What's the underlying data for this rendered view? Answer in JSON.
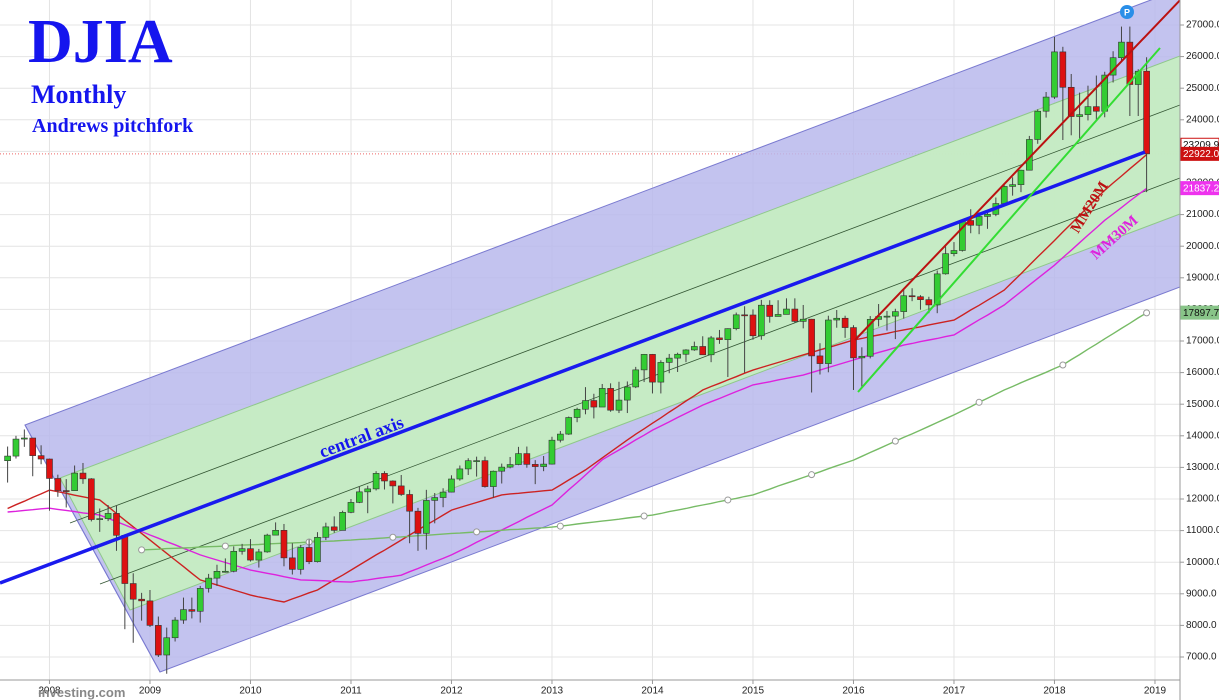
{
  "chart_data": {
    "type": "candlestick",
    "title": "DJIA",
    "subtitles": [
      "Monthly",
      "Andrews pitchfork"
    ],
    "annotations": [
      "central axis"
    ],
    "watermark": "investing.com",
    "up_color": "#33cc33",
    "down_color": "#dd1111",
    "grid": true,
    "ylim": [
      6272,
      27791
    ],
    "yticks": [
      {
        "value": 7000,
        "label": "7000.0"
      },
      {
        "value": 8000,
        "label": "8000.0"
      },
      {
        "value": 9000,
        "label": "9000.0"
      },
      {
        "value": 10000,
        "label": "10000.0"
      },
      {
        "value": 11000,
        "label": "11000.0"
      },
      {
        "value": 12000,
        "label": "12000.0"
      },
      {
        "value": 13000,
        "label": "13000.0"
      },
      {
        "value": 14000,
        "label": "14000.0"
      },
      {
        "value": 15000,
        "label": "15000.0"
      },
      {
        "value": 16000,
        "label": "16000.0"
      },
      {
        "value": 17000,
        "label": "17000.0"
      },
      {
        "value": 18000,
        "label": "18000.0"
      },
      {
        "value": 19000,
        "label": "19000.0"
      },
      {
        "value": 20000,
        "label": "20000.0"
      },
      {
        "value": 21000,
        "label": "21000.0"
      },
      {
        "value": 22000,
        "label": "22000.0"
      },
      {
        "value": 23000,
        "label": "23000.0"
      },
      {
        "value": 24000,
        "label": "24000.0"
      },
      {
        "value": 25000,
        "label": "25000.0"
      },
      {
        "value": 26000,
        "label": "26000.0"
      },
      {
        "value": 27000,
        "label": "27000.0"
      }
    ],
    "categories": [
      null,
      null,
      null,
      null,
      null,
      "2008",
      null,
      null,
      null,
      null,
      null,
      null,
      null,
      null,
      null,
      null,
      null,
      "2009",
      null,
      null,
      null,
      null,
      null,
      null,
      null,
      null,
      null,
      null,
      null,
      "2010",
      null,
      null,
      null,
      null,
      null,
      null,
      null,
      null,
      null,
      null,
      null,
      "2011",
      null,
      null,
      null,
      null,
      null,
      null,
      null,
      null,
      null,
      null,
      null,
      "2012",
      null,
      null,
      null,
      null,
      null,
      null,
      null,
      null,
      null,
      null,
      null,
      "2013",
      null,
      null,
      null,
      null,
      null,
      null,
      null,
      null,
      null,
      null,
      null,
      "2014",
      null,
      null,
      null,
      null,
      null,
      null,
      null,
      null,
      null,
      null,
      null,
      "2015",
      null,
      null,
      null,
      null,
      null,
      null,
      null,
      null,
      null,
      null,
      null,
      "2016",
      null,
      null,
      null,
      null,
      null,
      null,
      null,
      null,
      null,
      null,
      null,
      "2017",
      null,
      null,
      null,
      null,
      null,
      null,
      null,
      null,
      null,
      null,
      null,
      "2018",
      null,
      null,
      null,
      null,
      null,
      null,
      null,
      null,
      null,
      null,
      null,
      "2019"
    ],
    "open": [
      13212,
      13358,
      13896,
      13930,
      13372,
      13265,
      12650,
      12266,
      12263,
      12820,
      12638,
      11350,
      11378,
      11544,
      10851,
      9325,
      8829,
      8776,
      8001,
      7063,
      7609,
      8168,
      8500,
      8447,
      9172,
      9496,
      9712,
      9713,
      10345,
      10428,
      10067,
      10325,
      10857,
      11009,
      10137,
      9774,
      10466,
      10015,
      10788,
      11118,
      11006,
      11578,
      11892,
      12226,
      12320,
      12811,
      12570,
      12414,
      12143,
      11614,
      10913,
      11955,
      12046,
      12218,
      12633,
      12952,
      13212,
      13214,
      12393,
      12880,
      13009,
      13090,
      13437,
      13096,
      13026,
      13104,
      13861,
      14054,
      14579,
      14840,
      15116,
      14910,
      15500,
      14810,
      15130,
      15546,
      16086,
      16577,
      15699,
      16322,
      16458,
      16581,
      16717,
      16827,
      16563,
      17098,
      17043,
      17391,
      17828,
      17823,
      17165,
      18133,
      17776,
      17841,
      18011,
      17620,
      17690,
      16528,
      16285,
      17664,
      17720,
      17425,
      16466,
      16517,
      17685,
      17774,
      17787,
      17930,
      18432,
      18401,
      18308,
      18142,
      19124,
      19763,
      19864,
      20812,
      20663,
      20941,
      21009,
      21350,
      21891,
      21948,
      22405,
      23377,
      24272,
      24719,
      26149,
      25029,
      24103,
      24163,
      24416,
      24271,
      25415,
      25965,
      26458,
      25116,
      25538,
      null
    ],
    "high": [
      13660,
      14000,
      14200,
      13930,
      13700,
      13280,
      12770,
      12630,
      13060,
      13140,
      12660,
      11700,
      11810,
      11790,
      10880,
      9650,
      9030,
      9120,
      8280,
      7930,
      8260,
      8880,
      8880,
      9250,
      9630,
      9920,
      10120,
      10500,
      10580,
      10730,
      10420,
      10900,
      11260,
      11210,
      10600,
      10550,
      10720,
      10950,
      11250,
      11450,
      11630,
      12000,
      12390,
      12420,
      12880,
      12880,
      12590,
      12760,
      12290,
      11720,
      12290,
      12190,
      12340,
      12750,
      13060,
      13290,
      13340,
      13340,
      12900,
      13120,
      13330,
      13650,
      13660,
      13230,
      13360,
      13970,
      14150,
      14610,
      14890,
      15540,
      15330,
      15640,
      15660,
      15710,
      15720,
      16180,
      16590,
      16590,
      16390,
      16590,
      16630,
      16740,
      16980,
      17150,
      17160,
      17350,
      17400,
      17900,
      18100,
      18000,
      18300,
      18290,
      18290,
      18350,
      18350,
      18140,
      17700,
      16930,
      17800,
      17980,
      17800,
      17500,
      16800,
      17790,
      18170,
      17950,
      18020,
      18620,
      18670,
      18450,
      18400,
      19230,
      19990,
      20130,
      20850,
      21170,
      21070,
      21110,
      21540,
      21930,
      22180,
      22420,
      23490,
      24330,
      24880,
      26620,
      26310,
      25450,
      24860,
      25080,
      25400,
      25520,
      26170,
      26950,
      26950,
      25600,
      25980,
      null
    ],
    "low": [
      12520,
      13280,
      13650,
      12720,
      13100,
      11630,
      12070,
      11730,
      12260,
      12480,
      11290,
      10960,
      11300,
      10360,
      7880,
      7450,
      8150,
      7950,
      7000,
      6470,
      7490,
      8050,
      8220,
      8090,
      9040,
      9250,
      9670,
      9680,
      10240,
      10020,
      9830,
      10300,
      10860,
      9870,
      9610,
      9610,
      9940,
      9990,
      10700,
      10930,
      11010,
      11550,
      11870,
      11550,
      12270,
      12300,
      11860,
      12100,
      10600,
      10360,
      10400,
      11230,
      11740,
      12210,
      12580,
      12760,
      12710,
      12360,
      12040,
      12490,
      12970,
      13070,
      12990,
      12470,
      12880,
      13090,
      13790,
      14030,
      14430,
      14680,
      14550,
      14920,
      14760,
      14720,
      14720,
      15510,
      15700,
      15340,
      15340,
      15980,
      16020,
      16330,
      16690,
      16560,
      16330,
      16910,
      15860,
      17340,
      16000,
      17040,
      17040,
      17580,
      17780,
      17850,
      17580,
      17400,
      15370,
      15940,
      16010,
      17420,
      17100,
      15450,
      15500,
      16450,
      17460,
      17330,
      17060,
      17710,
      18260,
      17990,
      17880,
      17880,
      19100,
      19680,
      19830,
      20410,
      20380,
      20550,
      20950,
      21280,
      21600,
      21710,
      22420,
      23240,
      24070,
      24660,
      23360,
      23510,
      23340,
      23980,
      23990,
      24080,
      25180,
      25850,
      24120,
      24120,
      21710,
      null
    ],
    "close": [
      13358,
      13896,
      13930,
      13372,
      13265,
      12650,
      12266,
      12263,
      12820,
      12638,
      11350,
      11378,
      11544,
      10851,
      9325,
      8829,
      8776,
      8001,
      7063,
      7609,
      8168,
      8500,
      8447,
      9172,
      9496,
      9712,
      9713,
      10345,
      10428,
      10067,
      10325,
      10857,
      11009,
      10137,
      9774,
      10466,
      10015,
      10788,
      11118,
      11006,
      11578,
      11892,
      12226,
      12320,
      12811,
      12570,
      12414,
      12143,
      11614,
      10913,
      11955,
      12046,
      12218,
      12633,
      12952,
      13212,
      13214,
      12393,
      12880,
      13009,
      13090,
      13437,
      13096,
      13026,
      13104,
      13861,
      14054,
      14579,
      14840,
      15116,
      14910,
      15500,
      14810,
      15130,
      15546,
      16086,
      16577,
      15699,
      16322,
      16458,
      16581,
      16717,
      16827,
      16563,
      17098,
      17043,
      17391,
      17828,
      17823,
      17165,
      18133,
      17776,
      17841,
      18011,
      17620,
      17690,
      16528,
      16285,
      17664,
      17720,
      17425,
      16466,
      16517,
      17685,
      17774,
      17787,
      17930,
      18432,
      18401,
      18308,
      18142,
      19124,
      19763,
      19864,
      20812,
      20663,
      20941,
      21009,
      21350,
      21891,
      21948,
      22405,
      23377,
      24272,
      24719,
      26149,
      25029,
      24103,
      24163,
      24416,
      24271,
      25415,
      25965,
      26458,
      25116,
      25538,
      22922,
      null
    ],
    "series": [
      {
        "name": "MM20M",
        "color": "#cc2222",
        "values": [
          11700,
          11820,
          11930,
          12050,
          12160,
          12280,
          12230,
          12180,
          12120,
          12070,
          12020,
          11970,
          11760,
          11540,
          11330,
          11120,
          10910,
          10700,
          10490,
          10280,
          10070,
          9860,
          9650,
          9440,
          9360,
          9280,
          9200,
          9120,
          9040,
          8960,
          8900,
          8850,
          8790,
          8740,
          8840,
          8930,
          9030,
          9120,
          9280,
          9440,
          9590,
          9750,
          9910,
          10070,
          10230,
          10380,
          10540,
          10700,
          10860,
          11020,
          11180,
          11330,
          11490,
          11650,
          11730,
          11810,
          11890,
          11970,
          12050,
          12130,
          12160,
          12180,
          12210,
          12230,
          12260,
          12280,
          12440,
          12600,
          12760,
          12920,
          13110,
          13300,
          13490,
          13680,
          13870,
          14050,
          14220,
          14400,
          14570,
          14750,
          14920,
          15100,
          15270,
          15450,
          15560,
          15660,
          15770,
          15870,
          15980,
          16080,
          16160,
          16240,
          16320,
          16400,
          16480,
          16560,
          16640,
          16720,
          16790,
          16870,
          16950,
          17030,
          17080,
          17140,
          17190,
          17240,
          17300,
          17350,
          17400,
          17450,
          17510,
          17560,
          17610,
          17660,
          17820,
          17980,
          18130,
          18290,
          18450,
          18610,
          18870,
          19130,
          19400,
          19660,
          19920,
          20180,
          20450,
          20710,
          20980,
          21240,
          21510,
          21770,
          22000,
          22220,
          22450,
          22670,
          22900,
          null
        ]
      },
      {
        "name": "MM30M",
        "color": "#dd22dd",
        "values": [
          11590,
          11610,
          11640,
          11660,
          11690,
          11710,
          11670,
          11640,
          11600,
          11560,
          11530,
          11490,
          11390,
          11280,
          11180,
          11070,
          10970,
          10860,
          10760,
          10650,
          10550,
          10440,
          10340,
          10230,
          10150,
          10070,
          9990,
          9910,
          9830,
          9750,
          9700,
          9650,
          9600,
          9540,
          9490,
          9440,
          9430,
          9420,
          9410,
          9390,
          9380,
          9370,
          9410,
          9440,
          9480,
          9520,
          9550,
          9590,
          9700,
          9800,
          9910,
          10020,
          10120,
          10230,
          10360,
          10490,
          10630,
          10760,
          10890,
          11020,
          11150,
          11280,
          11420,
          11550,
          11680,
          11810,
          12050,
          12290,
          12520,
          12760,
          13000,
          13240,
          13400,
          13550,
          13710,
          13870,
          14020,
          14180,
          14310,
          14440,
          14580,
          14710,
          14840,
          14970,
          15080,
          15180,
          15290,
          15400,
          15500,
          15610,
          15660,
          15710,
          15770,
          15820,
          15870,
          15920,
          16000,
          16080,
          16160,
          16240,
          16320,
          16400,
          16480,
          16560,
          16640,
          16710,
          16790,
          16870,
          16920,
          16980,
          17030,
          17080,
          17140,
          17190,
          17350,
          17510,
          17670,
          17820,
          17980,
          18140,
          18350,
          18560,
          18770,
          18980,
          19190,
          19400,
          19640,
          19870,
          20110,
          20350,
          20580,
          20820,
          21020,
          21220,
          21430,
          21630,
          21830,
          null
        ]
      },
      {
        "color": "#77bb66",
        "values": [
          null,
          null,
          null,
          null,
          null,
          null,
          null,
          null,
          null,
          null,
          null,
          null,
          null,
          null,
          null,
          null,
          10390,
          10400,
          10410,
          10430,
          10440,
          10450,
          10460,
          10480,
          10490,
          10500,
          10510,
          10530,
          10540,
          10550,
          10560,
          10580,
          10590,
          10600,
          10610,
          10620,
          10640,
          10650,
          10660,
          10670,
          10690,
          10700,
          10720,
          10730,
          10750,
          10770,
          10790,
          10800,
          10820,
          10840,
          10850,
          10870,
          10890,
          10910,
          10920,
          10940,
          10960,
          10970,
          10990,
          11010,
          11030,
          11040,
          11060,
          11080,
          11090,
          11110,
          11140,
          11170,
          11210,
          11240,
          11270,
          11300,
          11330,
          11360,
          11400,
          11430,
          11460,
          11490,
          11540,
          11600,
          11650,
          11700,
          11760,
          11810,
          11860,
          11920,
          11970,
          12020,
          12080,
          12130,
          12220,
          12310,
          12410,
          12500,
          12590,
          12680,
          12770,
          12860,
          12960,
          13050,
          13140,
          13230,
          13350,
          13470,
          13590,
          13710,
          13830,
          13950,
          14060,
          14180,
          14300,
          14420,
          14540,
          14660,
          14790,
          14920,
          15060,
          15190,
          15320,
          15450,
          15560,
          15680,
          15790,
          15900,
          16010,
          16130,
          16240,
          16410,
          16570,
          16740,
          16900,
          17070,
          17230,
          17400,
          17560,
          17730,
          17890,
          null
        ]
      }
    ],
    "price_labels": [
      {
        "value": 23209.9,
        "label": "23209.9",
        "color": "#ffffff",
        "text_color": "#111111"
      },
      {
        "value": 22922.0,
        "label": "22922.0",
        "color": "#cc1111",
        "text_color": "#ffffff"
      },
      {
        "value": 21837.2,
        "label": "21837.2",
        "color": "#ee33ee",
        "text_color": "#ffffff"
      },
      {
        "value": 17897.7,
        "label": "17897.7",
        "color": "#88c488",
        "text_color": "#111111"
      }
    ]
  }
}
